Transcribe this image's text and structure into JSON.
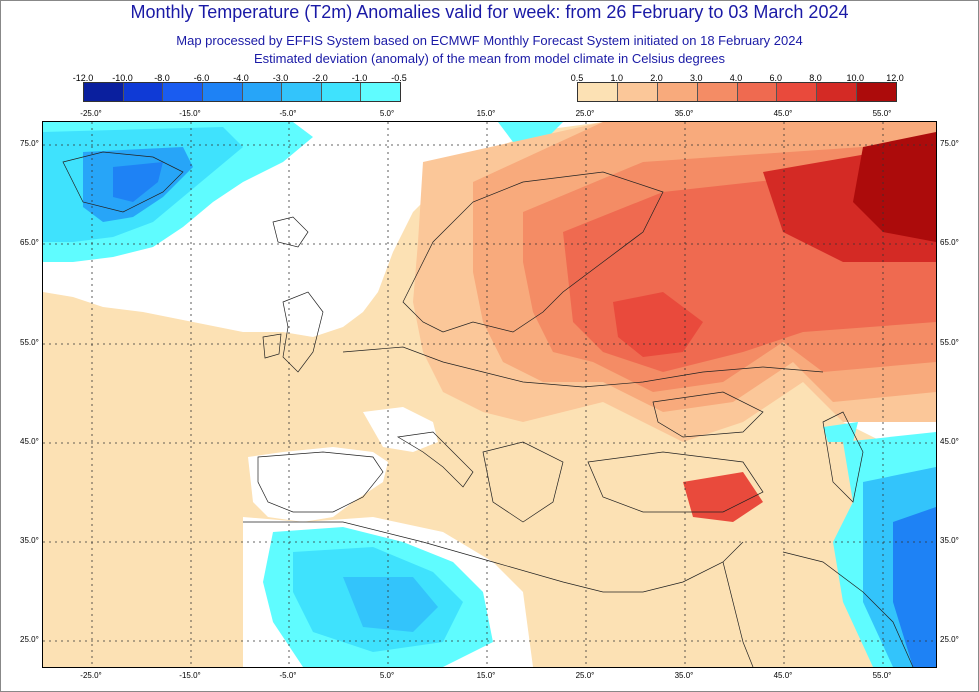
{
  "title": "Monthly Temperature (T2m) Anomalies valid for week: from 26 February to 03 March 2024",
  "subtitle1": "Map processed by EFFIS System based on ECMWF Monthly Forecast System initiated on 18 February 2024",
  "subtitle2": "Estimated deviation (anomaly) of the mean from model climate in Celsius degrees",
  "legend_cold": {
    "labels": [
      "-12.0",
      "-10.0",
      "-8.0",
      "-6.0",
      "-4.0",
      "-3.0",
      "-2.0",
      "-1.0",
      "-0.5"
    ],
    "colors": [
      "#0a1f9e",
      "#0f3ad6",
      "#1a5cf0",
      "#1e82f5",
      "#27a5f8",
      "#33c4fb",
      "#3fe2fd",
      "#5ffcff"
    ]
  },
  "legend_warm": {
    "labels": [
      "0.5",
      "1.0",
      "2.0",
      "3.0",
      "4.0",
      "6.0",
      "8.0",
      "10.0",
      "12.0"
    ],
    "colors": [
      "#fce1b4",
      "#fbc799",
      "#f8aa7c",
      "#f48c65",
      "#ef6a50",
      "#e94a3c",
      "#d42a25",
      "#ac0b0b"
    ]
  },
  "lon_labels": [
    "-25.0°",
    "-15.0°",
    "-5.0°",
    "5.0°",
    "15.0°",
    "25.0°",
    "35.0°",
    "45.0°",
    "55.0°"
  ],
  "lat_labels": [
    "75.0°",
    "65.0°",
    "55.0°",
    "45.0°",
    "35.0°",
    "25.0°"
  ]
}
